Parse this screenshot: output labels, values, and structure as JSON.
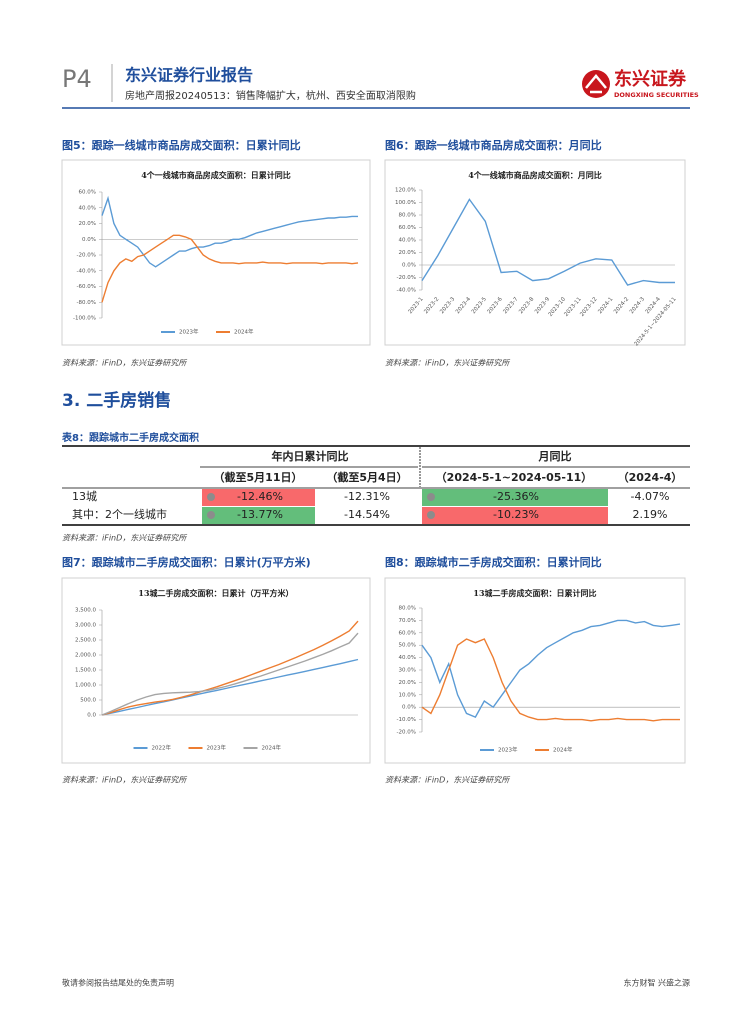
{
  "header": {
    "page": "P4",
    "brand": "东兴证券行业报告",
    "subtitle": "房地产周报20240513：销售降幅扩大，杭州、西安全面取消限购",
    "logo": "东兴证券",
    "logo_en": "DONGXING SECURITIES"
  },
  "figures": {
    "fig5": "图5：跟踪一线城市商品房成交面积：日累计同比",
    "fig6": "图6：跟踪一线城市商品房成交面积：月同比",
    "fig7": "图7：跟踪城市二手房成交面积：日累计(万平方米)",
    "fig8": "图8：跟踪城市二手房成交面积：日累计同比",
    "source": "资料来源：iFinD，东兴证券研究所"
  },
  "section": "3. 二手房销售",
  "table": {
    "title": "表8：跟踪城市二手房成交面积",
    "group_headers": [
      "年内日累计同比",
      "月同比"
    ],
    "sub_headers": [
      "（截至5月11日）",
      "（截至5月4日）",
      "（2024-5-1~2024-05-11）",
      "（2024-4）"
    ],
    "rows": [
      [
        "13城",
        "-12.46%",
        "-12.31%",
        "-25.36%",
        "-4.07%"
      ],
      [
        "其中：2个一线城市",
        "-13.77%",
        "-14.54%",
        "-10.23%",
        "2.19%"
      ]
    ]
  },
  "footer": {
    "left": "敬请参阅报告结尾处的免责声明",
    "right": "东方财智 兴盛之源"
  },
  "chart_data": [
    {
      "type": "line",
      "title": "4个一线城市商品房成交面积：日累计同比",
      "ylim": [
        -100,
        60
      ],
      "yticks": [
        {
          "value": 60,
          "label": "60.0%"
        },
        {
          "value": 40,
          "label": "40.0%"
        },
        {
          "value": 20,
          "label": "20.0%"
        },
        {
          "value": 0,
          "label": "0.0%"
        },
        {
          "value": -20,
          "label": "-20.0%"
        },
        {
          "value": -40,
          "label": "-40.0%"
        },
        {
          "value": -60,
          "label": "-60.0%"
        },
        {
          "value": -80,
          "label": "-80.0%"
        },
        {
          "value": -100,
          "label": "-100.0%"
        }
      ],
      "series": [
        {
          "name": "2023年",
          "color": "#5b9bd5",
          "values": [
            30,
            52,
            20,
            5,
            0,
            -5,
            -10,
            -20,
            -30,
            -35,
            -30,
            -25,
            -20,
            -15,
            -15,
            -12,
            -10,
            -10,
            -8,
            -5,
            -5,
            -3,
            0,
            0,
            2,
            5,
            8,
            10,
            12,
            14,
            16,
            18,
            20,
            22,
            23,
            24,
            25,
            26,
            27,
            27,
            28,
            28,
            29,
            29
          ]
        },
        {
          "name": "2024年",
          "color": "#ed7d31",
          "values": [
            -80,
            -55,
            -40,
            -30,
            -25,
            -28,
            -22,
            -20,
            -15,
            -10,
            -5,
            0,
            5,
            5,
            3,
            0,
            -10,
            -20,
            -25,
            -28,
            -30,
            -30,
            -30,
            -31,
            -30,
            -30,
            -30,
            -29,
            -30,
            -30,
            -30,
            -31,
            -30,
            -30,
            -30,
            -30,
            -30,
            -31,
            -30,
            -30,
            -30,
            -30,
            -31,
            -30
          ]
        }
      ]
    },
    {
      "type": "line",
      "title": "4个一线城市商品房成交面积：月同比",
      "ylim": [
        -40,
        120
      ],
      "yticks": [
        {
          "value": 120,
          "label": "120.0%"
        },
        {
          "value": 100,
          "label": "100.0%"
        },
        {
          "value": 80,
          "label": "80.0%"
        },
        {
          "value": 60,
          "label": "60.0%"
        },
        {
          "value": 40,
          "label": "40.0%"
        },
        {
          "value": 20,
          "label": "20.0%"
        },
        {
          "value": 0,
          "label": "0.0%"
        },
        {
          "value": -20,
          "label": "-20.0%"
        },
        {
          "value": -40,
          "label": "-40.0%"
        }
      ],
      "categories": [
        "2023-1",
        "2023-2",
        "2023-3",
        "2023-4",
        "2023-5",
        "2023-6",
        "2023-7",
        "2023-8",
        "2023-9",
        "2023-10",
        "2023-11",
        "2023-12",
        "2024-1",
        "2024-2",
        "2024-3",
        "2024-4",
        "2024-5-1~2024-05-11"
      ],
      "series": [
        {
          "name": null,
          "color": "#5b9bd5",
          "values": [
            -25,
            15,
            60,
            105,
            70,
            -12,
            -10,
            -25,
            -22,
            -10,
            3,
            10,
            8,
            -32,
            -25,
            -28,
            -28
          ]
        }
      ]
    },
    {
      "type": "line",
      "title": "13城二手房成交面积：日累计（万平方米）",
      "ylim": [
        0,
        3500
      ],
      "yticks": [
        {
          "value": 3500,
          "label": "3,500.0"
        },
        {
          "value": 3000,
          "label": "3,000.0"
        },
        {
          "value": 2500,
          "label": "2,500.0"
        },
        {
          "value": 2000,
          "label": "2,000.0"
        },
        {
          "value": 1500,
          "label": "1,500.0"
        },
        {
          "value": 1000,
          "label": "1,000.0"
        },
        {
          "value": 500,
          "label": "500.0"
        },
        {
          "value": 0,
          "label": "0.0"
        }
      ],
      "series": [
        {
          "name": "2022年",
          "color": "#5b9bd5",
          "values": [
            0,
            60,
            125,
            190,
            250,
            315,
            380,
            440,
            505,
            570,
            630,
            695,
            760,
            820,
            885,
            950,
            1010,
            1075,
            1140,
            1200,
            1265,
            1330,
            1390,
            1455,
            1520,
            1580,
            1645,
            1710,
            1780,
            1850
          ]
        },
        {
          "name": "2023年",
          "color": "#ed7d31",
          "values": [
            0,
            80,
            180,
            270,
            330,
            380,
            430,
            470,
            520,
            590,
            670,
            760,
            850,
            940,
            1040,
            1140,
            1240,
            1350,
            1460,
            1570,
            1680,
            1800,
            1920,
            2050,
            2180,
            2320,
            2470,
            2630,
            2800,
            3130
          ]
        },
        {
          "name": "2024年",
          "color": "#a5a5a5",
          "values": [
            0,
            120,
            250,
            380,
            500,
            600,
            680,
            720,
            740,
            750,
            760,
            780,
            820,
            880,
            950,
            1030,
            1120,
            1210,
            1300,
            1400,
            1500,
            1600,
            1700,
            1800,
            1910,
            2020,
            2140,
            2270,
            2400,
            2730
          ]
        }
      ]
    },
    {
      "type": "line",
      "title": "13城二手房成交面积：日累计同比",
      "ylim": [
        -20,
        80
      ],
      "yticks": [
        {
          "value": 80,
          "label": "80.0%"
        },
        {
          "value": 70,
          "label": "70.0%"
        },
        {
          "value": 60,
          "label": "60.0%"
        },
        {
          "value": 50,
          "label": "50.0%"
        },
        {
          "value": 40,
          "label": "40.0%"
        },
        {
          "value": 30,
          "label": "30.0%"
        },
        {
          "value": 20,
          "label": "20.0%"
        },
        {
          "value": 10,
          "label": "10.0%"
        },
        {
          "value": 0,
          "label": "0.0%"
        },
        {
          "value": -10,
          "label": "-10.0%"
        },
        {
          "value": -20,
          "label": "-20.0%"
        }
      ],
      "series": [
        {
          "name": "2023年",
          "color": "#5b9bd5",
          "values": [
            50,
            40,
            20,
            35,
            10,
            -5,
            -8,
            5,
            0,
            10,
            20,
            30,
            35,
            42,
            48,
            52,
            56,
            60,
            62,
            65,
            66,
            68,
            70,
            70,
            68,
            69,
            66,
            65,
            66,
            67
          ]
        },
        {
          "name": "2024年",
          "color": "#ed7d31",
          "values": [
            0,
            -5,
            10,
            30,
            50,
            55,
            52,
            55,
            40,
            20,
            5,
            -5,
            -8,
            -10,
            -10,
            -9,
            -10,
            -10,
            -10,
            -11,
            -10,
            -10,
            -9,
            -10,
            -10,
            -10,
            -11,
            -10,
            -10,
            -10
          ]
        }
      ]
    }
  ]
}
